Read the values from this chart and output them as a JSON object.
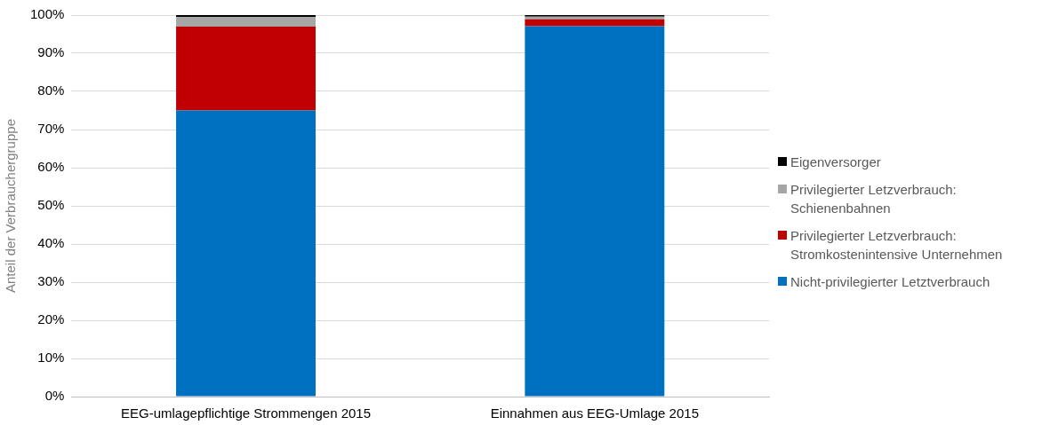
{
  "chart_data": {
    "type": "bar",
    "stacked": true,
    "ylabel": "Anteil der Verbrauchergruppe",
    "categories": [
      "EEG-umlagepflichtige Strommengen 2015",
      "Einnahmen aus EEG-Umlage 2015"
    ],
    "series": [
      {
        "name": "Nicht-privilegierter Letztverbrauch",
        "color": "#0070c0",
        "values": [
          75,
          97.1
        ]
      },
      {
        "name": "Privilegierter Letzverbrauch: Stromkostenintensive Unternehmen",
        "color": "#c00000",
        "values": [
          22,
          1.8
        ]
      },
      {
        "name": "Privilegierter Letzverbrauch: Schienenbahnen",
        "color": "#a6a6a6",
        "values": [
          2.5,
          0.7
        ]
      },
      {
        "name": "Eigenversorger",
        "color": "#000000",
        "values": [
          0.5,
          0.4
        ]
      }
    ],
    "ylim": [
      0,
      100
    ],
    "yticks": [
      {
        "value": 0,
        "label": "0%"
      },
      {
        "value": 10,
        "label": "10%"
      },
      {
        "value": 20,
        "label": "20%"
      },
      {
        "value": 30,
        "label": "30%"
      },
      {
        "value": 40,
        "label": "40%"
      },
      {
        "value": 50,
        "label": "50%"
      },
      {
        "value": 60,
        "label": "60%"
      },
      {
        "value": 70,
        "label": "70%"
      },
      {
        "value": 80,
        "label": "80%"
      },
      {
        "value": 90,
        "label": "90%"
      },
      {
        "value": 100,
        "label": "100%"
      }
    ],
    "grid": "y",
    "legend": "right"
  }
}
